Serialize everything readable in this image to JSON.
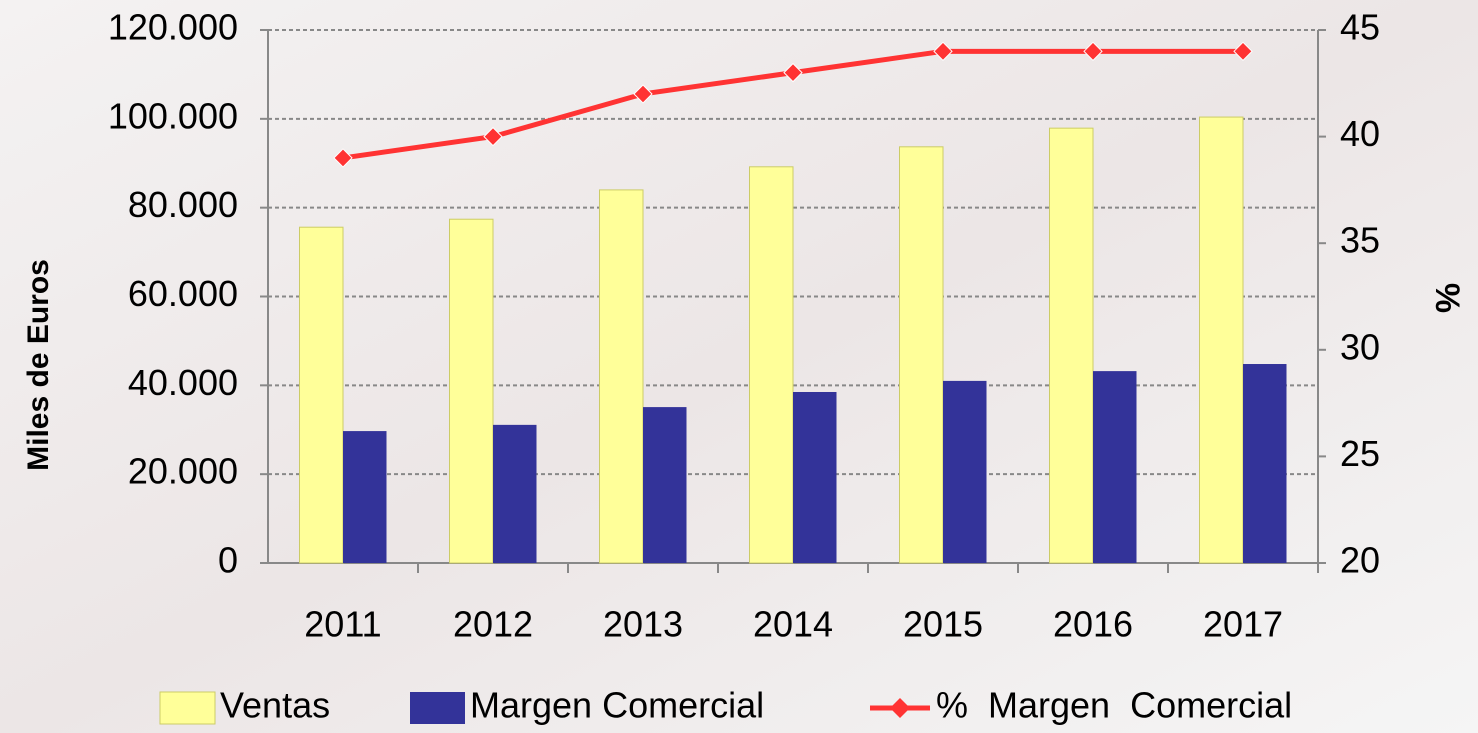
{
  "chart_data": {
    "type": "bar",
    "y_label": "Miles de Euros",
    "y2_label": "%",
    "categories": [
      "2011",
      "2012",
      "2013",
      "2014",
      "2015",
      "2016",
      "2017"
    ],
    "series": [
      {
        "name": "Ventas",
        "type": "bar",
        "color": "#ffff99",
        "values": [
          75600,
          77400,
          84000,
          89200,
          93700,
          97900,
          100400
        ]
      },
      {
        "name": "Margen Comercial",
        "type": "bar",
        "color": "#333399",
        "values": [
          29700,
          31100,
          35100,
          38500,
          41000,
          43200,
          44800
        ]
      },
      {
        "name": "% Margen Comercial",
        "type": "line",
        "axis": "y2",
        "color": "#ff3333",
        "values": [
          39,
          40,
          42,
          43,
          44,
          44,
          44
        ]
      }
    ],
    "ylim": [
      0,
      120000
    ],
    "yticks": [
      0,
      {
        "value": 20000,
        "label": "20.000"
      },
      {
        "value": 40000,
        "label": "40.000"
      },
      {
        "value": 60000,
        "label": "60.000"
      },
      {
        "value": 80000,
        "label": "80.000"
      },
      {
        "value": 100000,
        "label": "100.000"
      },
      {
        "value": 120000,
        "label": "120.000"
      }
    ],
    "y2lim": [
      20,
      45
    ],
    "y2ticks": [
      20,
      25,
      30,
      35,
      40,
      45
    ],
    "grid": true
  }
}
